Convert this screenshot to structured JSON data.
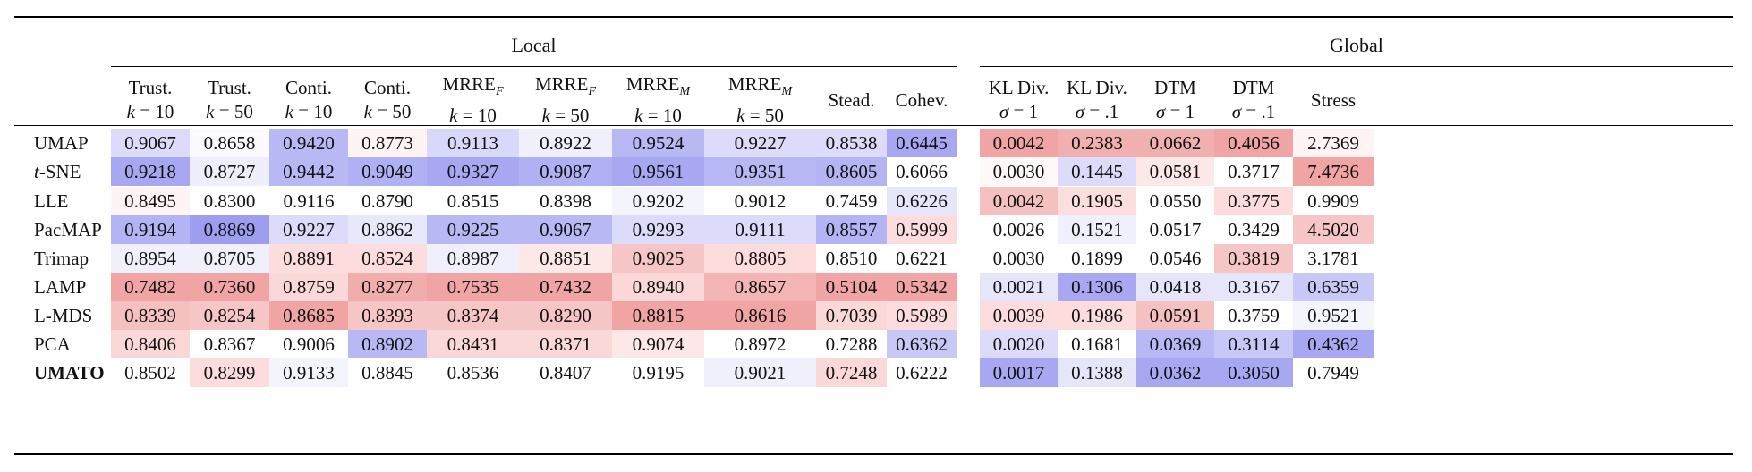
{
  "groups": [
    {
      "label": "Local"
    },
    {
      "label": "Global"
    }
  ],
  "columns": [
    {
      "line1": "Trust.",
      "line2": "k = 10"
    },
    {
      "line1": "Trust.",
      "line2": "k = 50"
    },
    {
      "line1": "Conti.",
      "line2": "k = 10"
    },
    {
      "line1": "Conti.",
      "line2": "k = 50"
    },
    {
      "line1": "MRRE_F",
      "line2": "k = 10"
    },
    {
      "line1": "MRRE_F",
      "line2": "k = 50"
    },
    {
      "line1": "MRRE_M",
      "line2": "k = 10"
    },
    {
      "line1": "MRRE_M",
      "line2": "k = 50"
    },
    {
      "line1": "Stead.",
      "line2": ""
    },
    {
      "line1": "Cohev.",
      "line2": ""
    },
    {
      "line1": "KL Div.",
      "line2": "σ = 1"
    },
    {
      "line1": "KL Div.",
      "line2": "σ = .1"
    },
    {
      "line1": "DTM",
      "line2": "σ = 1"
    },
    {
      "line1": "DTM",
      "line2": "σ = .1"
    },
    {
      "line1": "Stress",
      "line2": ""
    }
  ],
  "rows": [
    {
      "label": "UMAP",
      "bold": false,
      "values": [
        "0.9067",
        "0.8658",
        "0.9420",
        "0.8773",
        "0.9113",
        "0.8922",
        "0.9524",
        "0.9227",
        "0.8538",
        "0.6445",
        "0.0042",
        "0.2383",
        "0.0662",
        "0.4056",
        "2.7369"
      ],
      "colors": [
        "#dcdcfa",
        "#fafaff",
        "#b8b8f5",
        "#fff4f4",
        "#d8d8f9",
        "#f0f0fc",
        "#b8b8f5",
        "#dcdcfa",
        "#dcdcfa",
        "#a8a8f2",
        "#f0a4a4",
        "#f1b0b0",
        "#f1b0b0",
        "#f0a4a4",
        "#fff4f4"
      ]
    },
    {
      "label": "t-SNE",
      "bold": false,
      "values": [
        "0.9218",
        "0.8727",
        "0.9442",
        "0.9049",
        "0.9327",
        "0.9087",
        "0.9561",
        "0.9351",
        "0.8605",
        "0.6066",
        "0.0030",
        "0.1445",
        "0.0581",
        "0.3717",
        "7.4736"
      ],
      "colors": [
        "#a8a8f2",
        "#eeeefc",
        "#b8b8f5",
        "#b0b0f4",
        "#a8a8f2",
        "#b0b0f4",
        "#a8a8f2",
        "#b8b8f5",
        "#b4b4f4",
        "#ffffff",
        "#fff8f8",
        "#dcdcfa",
        "#fde8e8",
        "#ffffff",
        "#f0a4a4"
      ]
    },
    {
      "label": "LLE",
      "bold": false,
      "values": [
        "0.8495",
        "0.8300",
        "0.9116",
        "0.8790",
        "0.8515",
        "0.8398",
        "0.9202",
        "0.9012",
        "0.7459",
        "0.6226",
        "0.0042",
        "0.1905",
        "0.0550",
        "0.3775",
        "0.9909"
      ],
      "colors": [
        "#fff4f4",
        "#ffffff",
        "#ffffff",
        "#ffffff",
        "#ffffff",
        "#ffffff",
        "#f4f4fd",
        "#ffffff",
        "#ffffff",
        "#e6e6fb",
        "#f5c0c0",
        "#fbdede",
        "#ffffff",
        "#fcdcdc",
        "#ffffff"
      ]
    },
    {
      "label": "PacMAP",
      "bold": false,
      "values": [
        "0.9194",
        "0.8869",
        "0.9227",
        "0.8862",
        "0.9225",
        "0.9067",
        "0.9293",
        "0.9111",
        "0.8557",
        "0.5999",
        "0.0026",
        "0.1521",
        "0.0517",
        "0.3429",
        "4.5020"
      ],
      "colors": [
        "#b4b4f4",
        "#9e9ef0",
        "#dcdcfa",
        "#e8e8fb",
        "#b8b8f5",
        "#b8b8f5",
        "#dcdcfa",
        "#dcdcfa",
        "#b4b4f4",
        "#fcdcdc",
        "#ffffff",
        "#f0f0fc",
        "#ffffff",
        "#ffffff",
        "#f6c6c6"
      ]
    },
    {
      "label": "Trimap",
      "bold": false,
      "values": [
        "0.8954",
        "0.8705",
        "0.8891",
        "0.8524",
        "0.8987",
        "0.8851",
        "0.9025",
        "0.8805",
        "0.8510",
        "0.6221",
        "0.0030",
        "0.1899",
        "0.0546",
        "0.3819",
        "3.1781"
      ],
      "colors": [
        "#f0f0fc",
        "#f0f0fc",
        "#fcdcdc",
        "#fcdcdc",
        "#f0f0fc",
        "#fde8e8",
        "#f6c6c6",
        "#fcdcdc",
        "#ffffff",
        "#ffffff",
        "#ffffff",
        "#ffffff",
        "#ffffff",
        "#f6c6c6",
        "#ffffff"
      ]
    },
    {
      "label": "LAMP",
      "bold": false,
      "values": [
        "0.7482",
        "0.7360",
        "0.8759",
        "0.8277",
        "0.7535",
        "0.7432",
        "0.8940",
        "0.8657",
        "0.5104",
        "0.5342",
        "0.0021",
        "0.1306",
        "0.0418",
        "0.3167",
        "0.6359"
      ],
      "colors": [
        "#f0a4a4",
        "#f0a4a4",
        "#fbd8d8",
        "#f1acac",
        "#f0a4a4",
        "#f0a4a4",
        "#fbd8d8",
        "#f3b4b4",
        "#f0a4a4",
        "#f0a4a4",
        "#e6e6fb",
        "#a8a8f2",
        "#e6e6fb",
        "#e6e6fb",
        "#c8c8f7"
      ]
    },
    {
      "label": "L-MDS",
      "bold": false,
      "values": [
        "0.8339",
        "0.8254",
        "0.8685",
        "0.8393",
        "0.8374",
        "0.8290",
        "0.8815",
        "0.8616",
        "0.7039",
        "0.5989",
        "0.0039",
        "0.1986",
        "0.0591",
        "0.3759",
        "0.9521"
      ],
      "colors": [
        "#f5c0c0",
        "#f6c6c6",
        "#f0a4a4",
        "#f6c6c6",
        "#f6c6c6",
        "#f6c6c6",
        "#f0a4a4",
        "#f0a4a4",
        "#fbd8d8",
        "#fcdcdc",
        "#fcdcdc",
        "#fcdcdc",
        "#f5c0c0",
        "#ffffff",
        "#f4f4fd"
      ]
    },
    {
      "label": "PCA",
      "bold": false,
      "values": [
        "0.8406",
        "0.8367",
        "0.9006",
        "0.8902",
        "0.8431",
        "0.8371",
        "0.9074",
        "0.8972",
        "0.7288",
        "0.6362",
        "0.0020",
        "0.1681",
        "0.0369",
        "0.3114",
        "0.4362"
      ],
      "colors": [
        "#fbd8d8",
        "#ffffff",
        "#ffffff",
        "#b8b8f5",
        "#fbd8d8",
        "#fbd8d8",
        "#fde8e8",
        "#ffffff",
        "#ffffff",
        "#c8c8f7",
        "#dcdcfa",
        "#ffffff",
        "#b8b8f5",
        "#c8c8f7",
        "#a8a8f2"
      ]
    },
    {
      "label": "UMATO",
      "bold": true,
      "values": [
        "0.8502",
        "0.8299",
        "0.9133",
        "0.8845",
        "0.8536",
        "0.8407",
        "0.9195",
        "0.9021",
        "0.7248",
        "0.6222",
        "0.0017",
        "0.1388",
        "0.0362",
        "0.3050",
        "0.7949"
      ],
      "colors": [
        "#ffffff",
        "#fcdcdc",
        "#f4f4fd",
        "#ffffff",
        "#ffffff",
        "#ffffff",
        "#ffffff",
        "#f0f0fc",
        "#fbd8d8",
        "#ffffff",
        "#a8a8f2",
        "#e6e6fb",
        "#a8a8f2",
        "#a8a8f2",
        "#ffffff"
      ]
    }
  ]
}
